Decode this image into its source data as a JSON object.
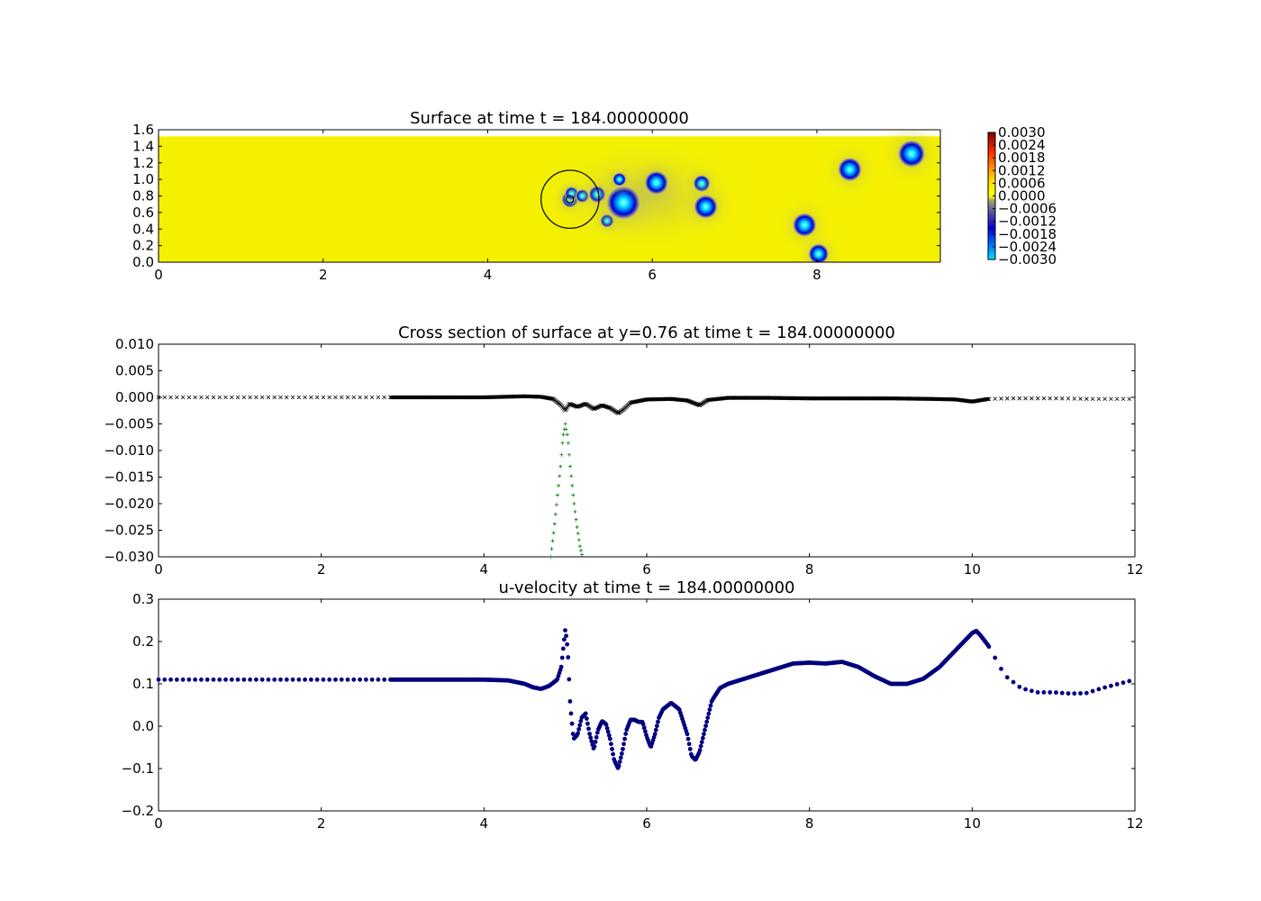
{
  "chart_data": [
    {
      "type": "heatmap",
      "title": "Surface at time t =   184.00000000",
      "xlabel": "",
      "ylabel": "",
      "xlim": [
        0,
        9.5
      ],
      "ylim": [
        0,
        1.6
      ],
      "x_ticks": [
        "0",
        "2",
        "4",
        "6",
        "8"
      ],
      "y_ticks": [
        "0.0",
        "0.2",
        "0.4",
        "0.6",
        "0.8",
        "1.0",
        "1.2",
        "1.4",
        "1.6"
      ],
      "colorbar_ticks": [
        "0.0030",
        "0.0024",
        "0.0018",
        "0.0012",
        "0.0006",
        "0.0000",
        "−0.0006",
        "−0.0012",
        "−0.0018",
        "−0.0024",
        "−0.0030"
      ],
      "colorbar_range": [
        -0.003,
        0.003
      ],
      "background_value": 0.0,
      "domain_y_top": 1.52,
      "depressions": [
        {
          "x": 5.0,
          "y": 0.76,
          "r": 0.05
        },
        {
          "x": 5.02,
          "y": 0.83,
          "r": 0.04
        },
        {
          "x": 5.15,
          "y": 0.8,
          "r": 0.04
        },
        {
          "x": 5.33,
          "y": 0.82,
          "r": 0.05
        },
        {
          "x": 5.45,
          "y": 0.5,
          "r": 0.04
        },
        {
          "x": 5.65,
          "y": 0.72,
          "r": 0.1
        },
        {
          "x": 5.6,
          "y": 1.0,
          "r": 0.04
        },
        {
          "x": 6.05,
          "y": 0.96,
          "r": 0.07
        },
        {
          "x": 6.6,
          "y": 0.95,
          "r": 0.05
        },
        {
          "x": 6.65,
          "y": 0.67,
          "r": 0.07
        },
        {
          "x": 7.85,
          "y": 0.45,
          "r": 0.07
        },
        {
          "x": 8.02,
          "y": 0.1,
          "r": 0.06
        },
        {
          "x": 8.4,
          "y": 1.12,
          "r": 0.07
        },
        {
          "x": 9.15,
          "y": 1.31,
          "r": 0.08
        }
      ],
      "circle_overlay": {
        "x": 5.0,
        "y": 0.76,
        "r": 0.35
      }
    },
    {
      "type": "scatter",
      "title": "Cross section of surface at y=0.76 at time t =   184.00000000",
      "xlabel": "",
      "ylabel": "",
      "xlim": [
        0,
        12
      ],
      "ylim": [
        -0.03,
        0.01
      ],
      "x_ticks": [
        "0",
        "2",
        "4",
        "6",
        "8",
        "10",
        "12"
      ],
      "y_ticks": [
        "0.010",
        "0.005",
        "0.000",
        "−0.005",
        "−0.010",
        "−0.015",
        "−0.020",
        "−0.025",
        "−0.030"
      ],
      "series": [
        {
          "marker": "x",
          "color": "#000000",
          "x": [
            0,
            0.2,
            0.4,
            0.6,
            0.8,
            1.0,
            1.2,
            1.4,
            1.6,
            1.8,
            2.0,
            2.2,
            2.4,
            2.6,
            2.8,
            3.0,
            3.5,
            4.0,
            4.5,
            4.7,
            4.85,
            4.95,
            5.0,
            5.05,
            5.15,
            5.25,
            5.35,
            5.45,
            5.55,
            5.65,
            5.72,
            5.8,
            6.0,
            6.3,
            6.5,
            6.6,
            6.65,
            6.75,
            7.0,
            7.5,
            8.0,
            8.5,
            9.0,
            9.5,
            9.8,
            10.0,
            10.2,
            10.5,
            11.0,
            11.5,
            12.0
          ],
          "y": [
            0.0,
            0.0,
            0.0,
            0.0,
            0.0,
            0.0,
            0.0,
            0.0,
            0.0,
            0.0,
            0.0,
            0.0,
            0.0,
            0.0,
            0.0,
            0.0,
            0.0,
            0.0,
            0.0002,
            0.0001,
            -0.0003,
            -0.0015,
            -0.0025,
            -0.0012,
            -0.0018,
            -0.0012,
            -0.0022,
            -0.0015,
            -0.002,
            -0.003,
            -0.0022,
            -0.001,
            -0.0004,
            -0.0003,
            -0.0006,
            -0.0012,
            -0.0015,
            -0.0005,
            -0.0001,
            -0.0001,
            -0.0002,
            -0.0002,
            -0.0002,
            -0.0003,
            -0.0004,
            -0.0008,
            -0.0003,
            -0.0002,
            -0.0002,
            -0.0003,
            -0.0003
          ]
        },
        {
          "marker": "+",
          "color": "#007f00",
          "x": [
            4.82,
            4.86,
            4.9,
            4.94,
            4.97,
            5.0,
            5.03,
            5.06,
            5.1,
            5.14,
            5.18,
            5.21
          ],
          "y": [
            -0.03,
            -0.025,
            -0.019,
            -0.013,
            -0.0075,
            -0.005,
            -0.0075,
            -0.013,
            -0.019,
            -0.024,
            -0.028,
            -0.03
          ]
        }
      ]
    },
    {
      "type": "scatter",
      "title": "u-velocity at time t =   184.00000000",
      "xlabel": "",
      "ylabel": "",
      "xlim": [
        0,
        12
      ],
      "ylim": [
        -0.2,
        0.3
      ],
      "x_ticks": [
        "0",
        "2",
        "4",
        "6",
        "8",
        "10",
        "12"
      ],
      "y_ticks": [
        "0.3",
        "0.2",
        "0.1",
        "0.0",
        "−0.1",
        "−0.2"
      ],
      "series": [
        {
          "marker": "o",
          "color": "#00007f",
          "x": [
            0,
            1.0,
            2.0,
            2.8,
            3.5,
            4.0,
            4.3,
            4.5,
            4.6,
            4.7,
            4.8,
            4.9,
            4.95,
            5.0,
            5.03,
            5.06,
            5.1,
            5.15,
            5.2,
            5.25,
            5.3,
            5.35,
            5.4,
            5.45,
            5.5,
            5.55,
            5.6,
            5.65,
            5.7,
            5.75,
            5.8,
            5.85,
            5.9,
            5.95,
            6.0,
            6.05,
            6.1,
            6.15,
            6.2,
            6.3,
            6.4,
            6.5,
            6.55,
            6.6,
            6.65,
            6.7,
            6.8,
            6.9,
            7.0,
            7.2,
            7.5,
            7.8,
            8.0,
            8.2,
            8.4,
            8.6,
            8.8,
            9.0,
            9.2,
            9.4,
            9.6,
            9.8,
            10.0,
            10.05,
            10.1,
            10.2,
            10.4,
            10.6,
            10.8,
            11.0,
            11.2,
            11.4,
            11.6,
            11.8,
            12.0
          ],
          "y": [
            0.11,
            0.11,
            0.11,
            0.11,
            0.11,
            0.11,
            0.108,
            0.1,
            0.092,
            0.088,
            0.095,
            0.11,
            0.14,
            0.23,
            0.18,
            0.05,
            -0.03,
            -0.02,
            0.02,
            0.03,
            -0.02,
            -0.055,
            -0.01,
            0.012,
            0.005,
            -0.03,
            -0.08,
            -0.1,
            -0.06,
            -0.01,
            0.015,
            0.015,
            0.01,
            0.01,
            -0.025,
            -0.05,
            -0.02,
            0.02,
            0.04,
            0.055,
            0.04,
            -0.02,
            -0.07,
            -0.08,
            -0.06,
            -0.02,
            0.06,
            0.09,
            0.1,
            0.112,
            0.13,
            0.148,
            0.15,
            0.148,
            0.152,
            0.14,
            0.118,
            0.1,
            0.1,
            0.112,
            0.14,
            0.18,
            0.22,
            0.225,
            0.215,
            0.19,
            0.12,
            0.09,
            0.08,
            0.08,
            0.077,
            0.078,
            0.09,
            0.1,
            0.11
          ]
        }
      ]
    }
  ]
}
